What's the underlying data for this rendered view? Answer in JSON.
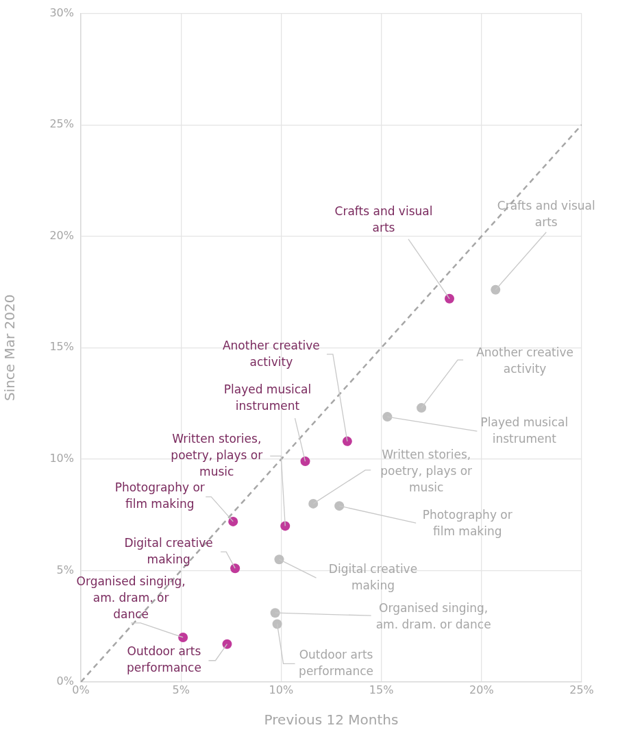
{
  "chart_data": {
    "type": "scatter",
    "xlabel": "Previous 12 Months",
    "ylabel": "Since Mar 2020",
    "xlim": [
      0,
      25
    ],
    "ylim": [
      0,
      30
    ],
    "xticks": [
      {
        "value": 0,
        "label": "0%"
      },
      {
        "value": 5,
        "label": "5%"
      },
      {
        "value": 10,
        "label": "10%"
      },
      {
        "value": 15,
        "label": "15%"
      },
      {
        "value": 20,
        "label": "20%"
      },
      {
        "value": 25,
        "label": "25%"
      }
    ],
    "yticks": [
      {
        "value": 0,
        "label": "0%"
      },
      {
        "value": 5,
        "label": "5%"
      },
      {
        "value": 10,
        "label": "10%"
      },
      {
        "value": 15,
        "label": "15%"
      },
      {
        "value": 20,
        "label": "20%"
      },
      {
        "value": 25,
        "label": "25%"
      },
      {
        "value": 30,
        "label": "30%"
      }
    ],
    "grid": true,
    "marker": "circle",
    "series": [
      {
        "type": "line",
        "color": "#a6a6a6",
        "line_style": "dashed",
        "marker": "none",
        "x": [
          0,
          25
        ],
        "values": [
          0,
          25
        ]
      },
      {
        "color": "#c0399a",
        "x": [
          18.4,
          13.3,
          11.2,
          10.2,
          7.6,
          7.7,
          5.1,
          7.3
        ],
        "values": [
          17.2,
          10.8,
          9.9,
          7.0,
          7.2,
          5.1,
          2.0,
          1.7
        ]
      },
      {
        "color": "#bfbfbf",
        "x": [
          20.7,
          17.0,
          15.3,
          11.6,
          12.9,
          9.9,
          9.7,
          9.8
        ],
        "values": [
          17.6,
          12.3,
          11.9,
          8.0,
          7.9,
          5.5,
          3.1,
          2.6
        ]
      }
    ],
    "annotations": [
      {
        "text": "Crafts and visual arts",
        "x": 18.4,
        "y": 17.2
      },
      {
        "text": "Another creative activity",
        "x": 13.3,
        "y": 10.8
      },
      {
        "text": "Played musical instrument",
        "x": 11.2,
        "y": 9.9
      },
      {
        "text": "Written stories, poetry, plays or music",
        "x": 10.2,
        "y": 7.0
      },
      {
        "text": "Photography or film making",
        "x": 7.6,
        "y": 7.2
      },
      {
        "text": "Digital creative making",
        "x": 7.7,
        "y": 5.1
      },
      {
        "text": "Organised singing, am. dram. or dance",
        "x": 5.1,
        "y": 2.0
      },
      {
        "text": "Outdoor arts performance",
        "x": 7.3,
        "y": 1.7
      },
      {
        "text": "Crafts and visual arts",
        "x": 20.7,
        "y": 17.6
      },
      {
        "text": "Another creative activity",
        "x": 17.0,
        "y": 12.3
      },
      {
        "text": "Played musical instrument",
        "x": 15.3,
        "y": 11.9
      },
      {
        "text": "Written stories, poetry, plays or music",
        "x": 11.6,
        "y": 8.0
      },
      {
        "text": "Photography or film making",
        "x": 12.9,
        "y": 7.9
      },
      {
        "text": "Digital creative making",
        "x": 9.9,
        "y": 5.5
      },
      {
        "text": "Organised singing, am. dram. or dance",
        "x": 9.7,
        "y": 3.1
      },
      {
        "text": "Outdoor arts performance",
        "x": 9.8,
        "y": 2.6
      }
    ]
  }
}
